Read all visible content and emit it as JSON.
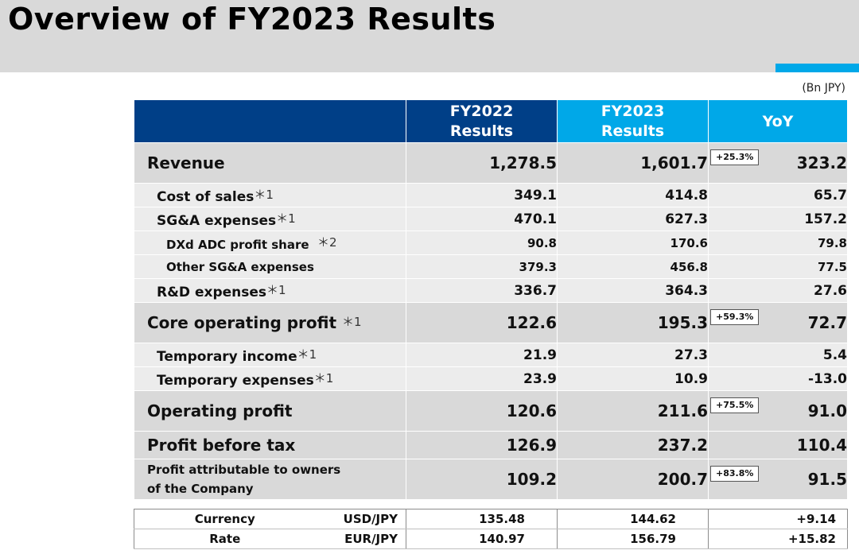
{
  "page": {
    "title": "Overview of FY2023 Results",
    "unit_note": "(Bn JPY)"
  },
  "header": {
    "fy2022": [
      "FY2022",
      "Results"
    ],
    "fy2023": [
      "FY2023",
      "Results"
    ],
    "yoy": "YoY"
  },
  "rows": [
    {
      "label": "Revenue",
      "mark": "",
      "fy2022": "1,278.5",
      "fy2023": "1,601.7",
      "yoy": "323.2",
      "pct": "+25.3%"
    },
    {
      "label": "Cost of sales",
      "mark": "＊1",
      "fy2022": "349.1",
      "fy2023": "414.8",
      "yoy": "65.7"
    },
    {
      "label": "SG&A expenses",
      "mark": "＊1",
      "fy2022": "470.1",
      "fy2023": "627.3",
      "yoy": "157.2"
    },
    {
      "label": "DXd ADC profit share",
      "mark": "＊2",
      "fy2022": "90.8",
      "fy2023": "170.6",
      "yoy": "79.8"
    },
    {
      "label": "Other SG&A expenses",
      "mark": "",
      "fy2022": "379.3",
      "fy2023": "456.8",
      "yoy": "77.5"
    },
    {
      "label": "R&D expenses",
      "mark": "＊1",
      "fy2022": "336.7",
      "fy2023": "364.3",
      "yoy": "27.6"
    },
    {
      "label": "Core operating profit",
      "mark": "＊1",
      "fy2022": "122.6",
      "fy2023": "195.3",
      "yoy": "72.7",
      "pct": "+59.3%"
    },
    {
      "label": "Temporary income",
      "mark": "＊1",
      "fy2022": "21.9",
      "fy2023": "27.3",
      "yoy": "5.4"
    },
    {
      "label": "Temporary expenses",
      "mark": "＊1",
      "fy2022": "23.9",
      "fy2023": "10.9",
      "yoy": "-13.0"
    },
    {
      "label": "Operating profit",
      "mark": "",
      "fy2022": "120.6",
      "fy2023": "211.6",
      "yoy": "91.0",
      "pct": "+75.5%"
    },
    {
      "label": "Profit before tax",
      "mark": "",
      "fy2022": "126.9",
      "fy2023": "237.2",
      "yoy": "110.4"
    },
    {
      "label_lines": [
        "Profit attributable to owners",
        "of the Company"
      ],
      "fy2022": "109.2",
      "fy2023": "200.7",
      "yoy": "91.5",
      "pct": "+83.8%"
    }
  ],
  "currency": {
    "label_1": "Currency",
    "label_2": "Rate",
    "rows": [
      {
        "pair": "USD/JPY",
        "fy2022": "135.48",
        "fy2023": "144.62",
        "yoy": "+9.14"
      },
      {
        "pair": "EUR/JPY",
        "fy2022": "140.97",
        "fy2023": "156.79",
        "yoy": "+15.82"
      }
    ]
  }
}
